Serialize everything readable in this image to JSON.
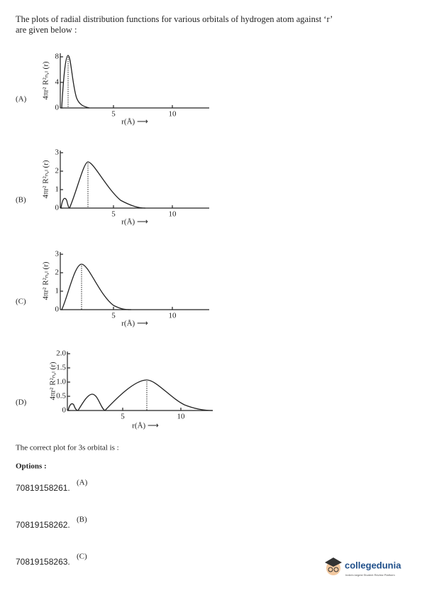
{
  "question": "The plots of radial distribution functions for various orbitals of hydrogen atom against ‘r’ are given below :",
  "plots": [
    {
      "label": "(A)",
      "y_label": "4πr² R²ₙ,ₗ (r)",
      "yticks": [
        "0",
        "4",
        "8"
      ],
      "xticks": [
        "5",
        "10"
      ],
      "x_label": "r(Å) ⟶"
    },
    {
      "label": "(B)",
      "y_label": "4πr² R²ₙ,ₗ (r)",
      "yticks": [
        "0",
        "1",
        "2",
        "3"
      ],
      "xticks": [
        "5",
        "10"
      ],
      "x_label": "r(Å) ⟶"
    },
    {
      "label": "(C)",
      "y_label": "4πr² R²ₙ,ₗ (r)",
      "yticks": [
        "0",
        "1",
        "2",
        "3"
      ],
      "xticks": [
        "5",
        "10"
      ],
      "x_label": "r(Å) ⟶"
    },
    {
      "label": "(D)",
      "y_label": "4πr² R²ₙ,ₗ (r)",
      "yticks": [
        "0",
        "0.5",
        "1.0",
        "1.5",
        "2.0"
      ],
      "xticks": [
        "5",
        "10"
      ],
      "x_label": "r(Å) ⟶"
    }
  ],
  "prompt": "The correct plot for 3s orbital is :",
  "options_heading": "Options :",
  "options": [
    {
      "id": "70819158261.",
      "text": "(A)"
    },
    {
      "id": "70819158262.",
      "text": "(B)"
    },
    {
      "id": "70819158263.",
      "text": "(C)"
    }
  ],
  "logo": {
    "name": "collegedunia",
    "tagline": "India's largest Student Review Platform"
  }
}
